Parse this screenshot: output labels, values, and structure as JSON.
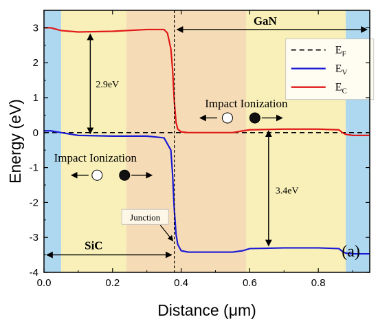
{
  "chart_data": {
    "type": "line",
    "panel_label": "(a)",
    "xlabel": "Distance (μm)",
    "ylabel": "Energy (eV)",
    "xlim": [
      0.0,
      0.95
    ],
    "ylim": [
      -4,
      3.5
    ],
    "x_ticks": [
      "0.0",
      "0.2",
      "0.4",
      "0.6",
      "0.8"
    ],
    "x_tick_values": [
      0.0,
      0.2,
      0.4,
      0.6,
      0.8
    ],
    "y_ticks": [
      "3",
      "2",
      "1",
      "0",
      "-1",
      "-2",
      "-3",
      "-4"
    ],
    "y_tick_values": [
      3,
      2,
      1,
      0,
      -1,
      -2,
      -3,
      -4
    ],
    "regions": [
      {
        "x": [
          0.0,
          0.05
        ],
        "color": "#aed8f0"
      },
      {
        "x": [
          0.05,
          0.24
        ],
        "color": "#f8f0b8"
      },
      {
        "x": [
          0.24,
          0.59
        ],
        "color": "#f6dcb6"
      },
      {
        "x": [
          0.59,
          0.88
        ],
        "color": "#f8f0b8"
      },
      {
        "x": [
          0.88,
          0.95
        ],
        "color": "#aed8f0"
      }
    ],
    "junction_x": 0.38,
    "series": [
      {
        "name": "E_F",
        "color": "#000000",
        "style": "dashed",
        "x": [
          0.0,
          0.95
        ],
        "y": [
          0.0,
          0.0
        ]
      },
      {
        "name": "E_V",
        "color": "#1a1ad6",
        "style": "solid",
        "x": [
          0.0,
          0.02,
          0.05,
          0.1,
          0.2,
          0.3,
          0.35,
          0.37,
          0.375,
          0.38,
          0.385,
          0.39,
          0.4,
          0.42,
          0.45,
          0.5,
          0.55,
          0.58,
          0.6,
          0.7,
          0.8,
          0.86,
          0.87,
          0.88,
          0.9,
          0.95
        ],
        "y": [
          0.05,
          0.05,
          0.0,
          -0.08,
          -0.1,
          -0.1,
          -0.15,
          -0.5,
          -1.2,
          -2.2,
          -2.9,
          -3.2,
          -3.38,
          -3.42,
          -3.42,
          -3.42,
          -3.42,
          -3.38,
          -3.32,
          -3.3,
          -3.3,
          -3.32,
          -3.4,
          -3.45,
          -3.47,
          -3.47
        ]
      },
      {
        "name": "E_C",
        "color": "#e01818",
        "style": "solid",
        "x": [
          0.0,
          0.02,
          0.05,
          0.1,
          0.2,
          0.3,
          0.35,
          0.36,
          0.37,
          0.375,
          0.38,
          0.385,
          0.39,
          0.4,
          0.42,
          0.45,
          0.5,
          0.55,
          0.58,
          0.6,
          0.7,
          0.8,
          0.86,
          0.87,
          0.88,
          0.9,
          0.95
        ],
        "y": [
          3.0,
          3.0,
          2.92,
          2.88,
          2.9,
          2.95,
          2.95,
          2.85,
          2.4,
          1.8,
          0.9,
          0.3,
          0.1,
          0.02,
          0.0,
          0.0,
          0.0,
          0.0,
          0.05,
          0.08,
          0.1,
          0.1,
          0.08,
          0.0,
          -0.05,
          -0.08,
          -0.08
        ]
      }
    ],
    "legend": {
      "placement": "top-right",
      "entries": [
        {
          "series": "E_F",
          "base": "E",
          "sub": "F"
        },
        {
          "series": "E_V",
          "base": "E",
          "sub": "V"
        },
        {
          "series": "E_C",
          "base": "E",
          "sub": "C"
        }
      ]
    },
    "annotations": {
      "gan_label": "GaN",
      "sic_label": "SiC",
      "sic_bandgap": "2.9eV",
      "gan_bandgap": "3.4eV",
      "impact_left": "Impact Ionization",
      "impact_right": "Impact Ionization",
      "junction_label": "Junction"
    }
  }
}
